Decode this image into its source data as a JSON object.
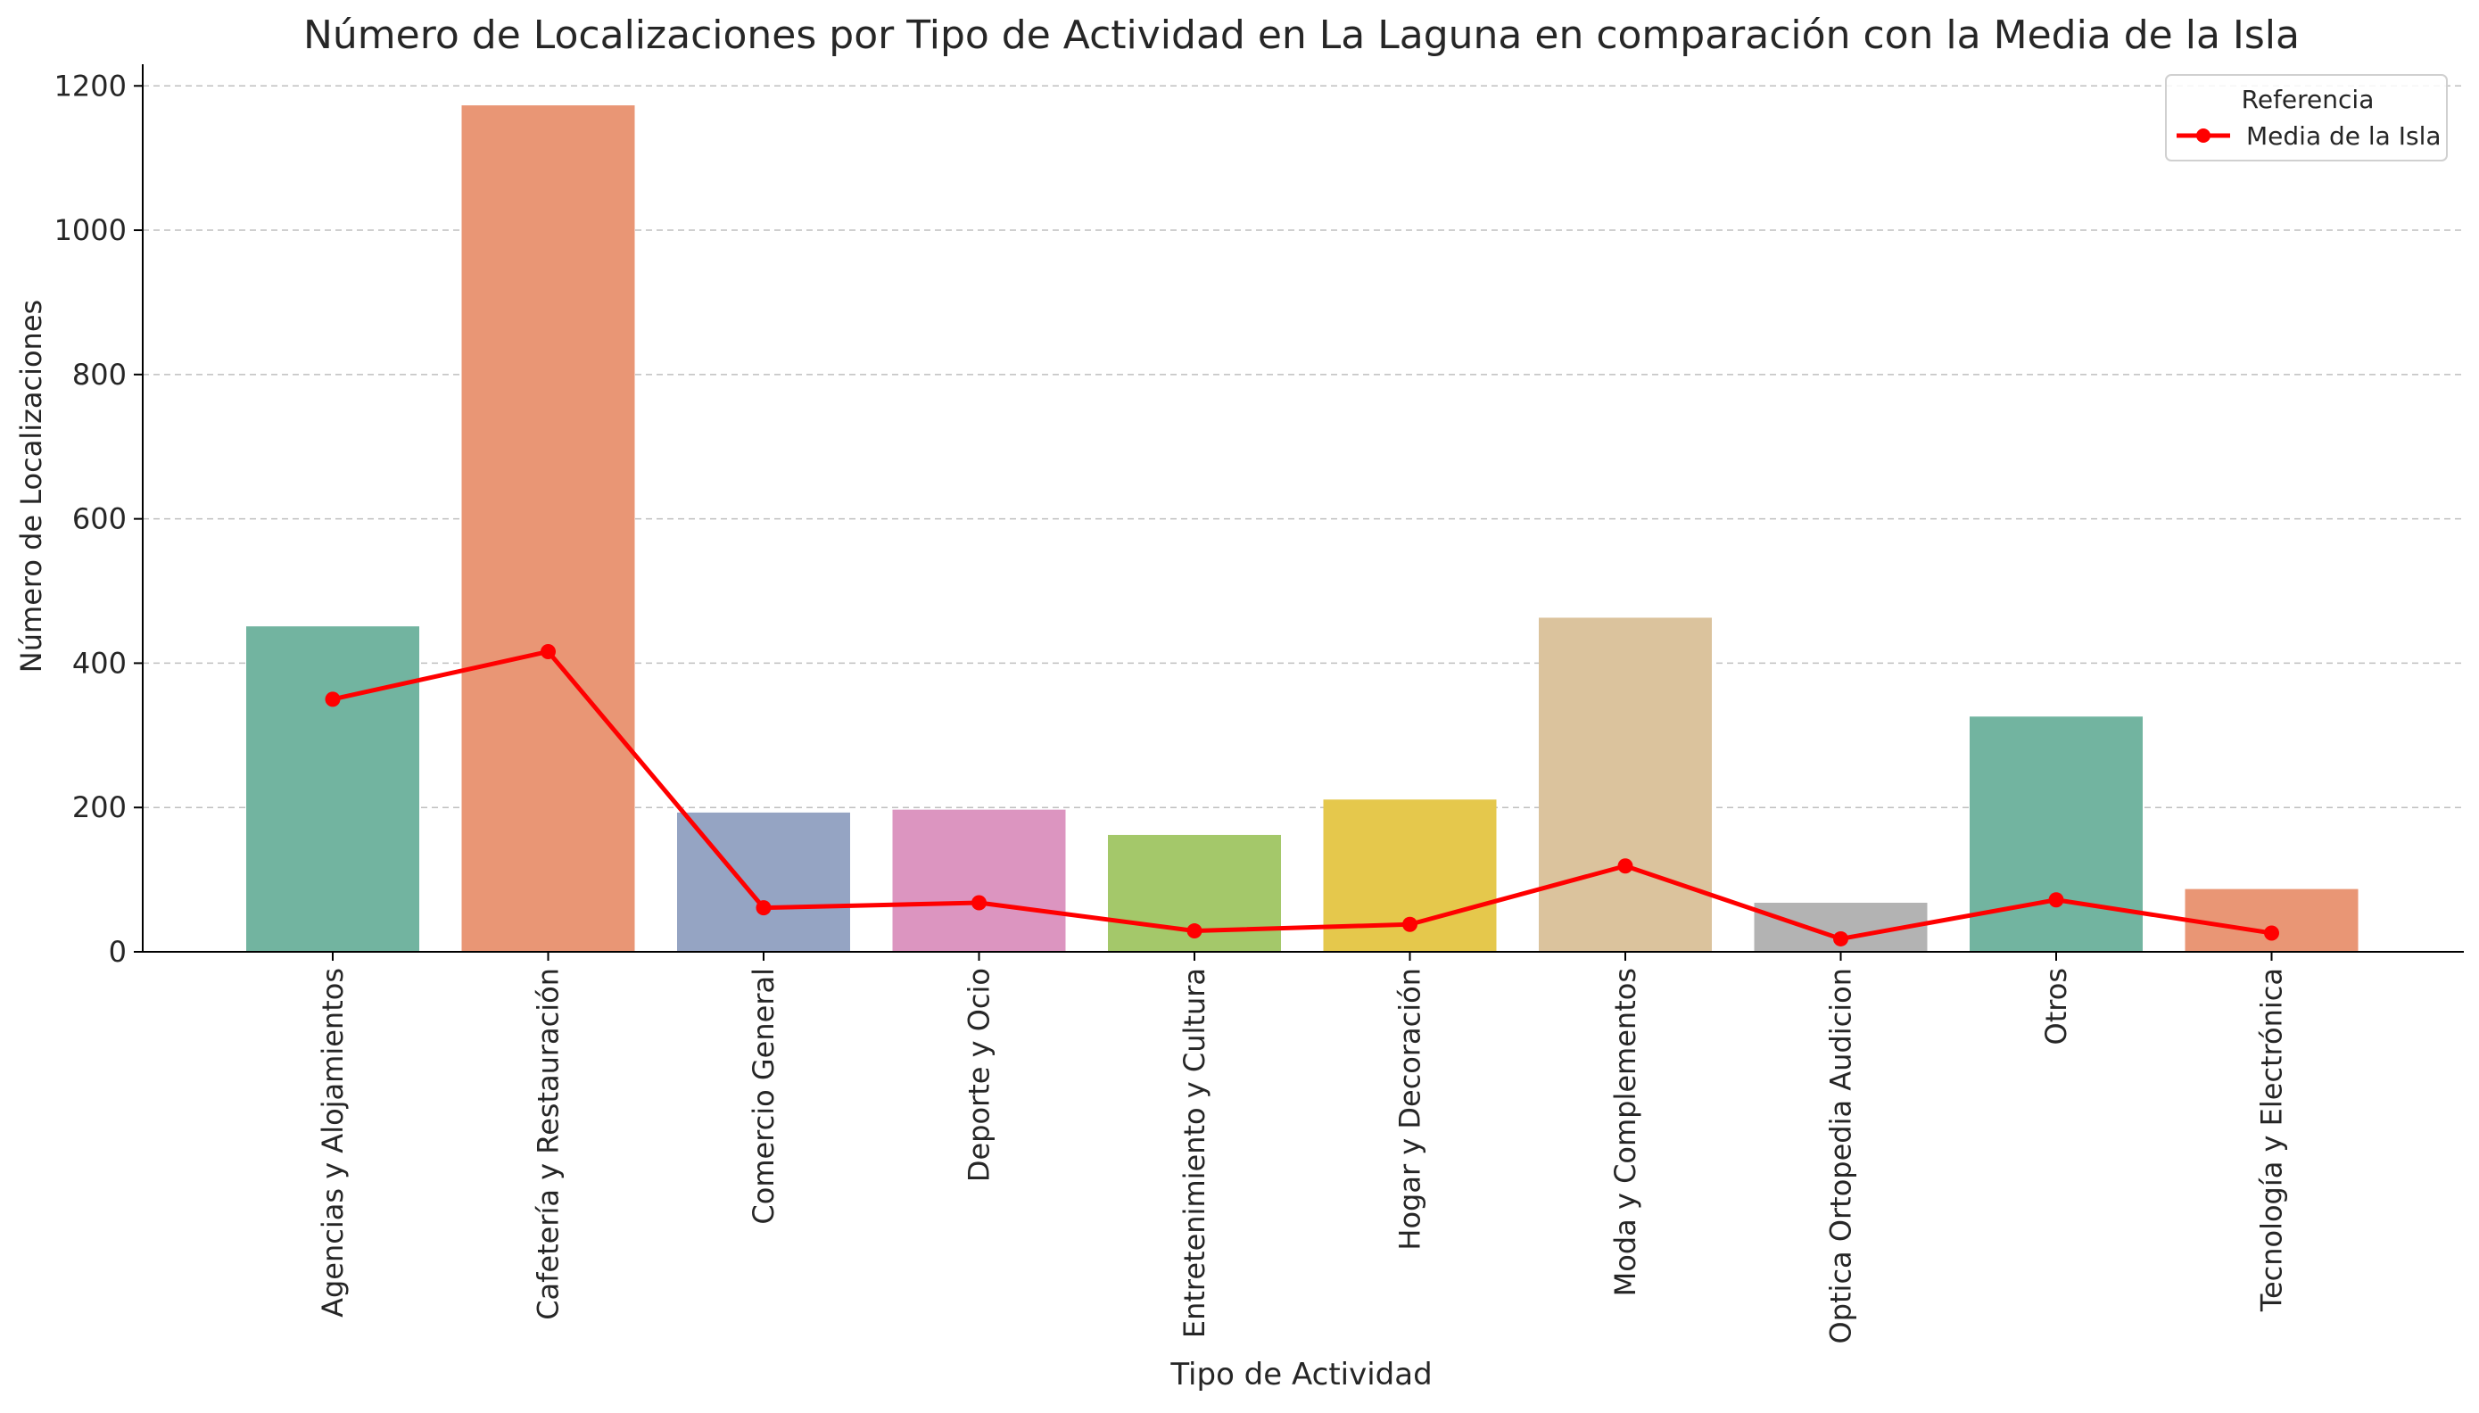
{
  "chart_data": {
    "type": "bar",
    "title": "Número de Localizaciones por Tipo de Actividad en La Laguna en comparación con la Media de la Isla",
    "xlabel": "Tipo de Actividad",
    "ylabel": "Número de Localizaciones",
    "ylim": [
      0,
      1230
    ],
    "yticks": [
      0,
      200,
      400,
      600,
      800,
      1000,
      1200
    ],
    "grid": true,
    "categories": [
      "Agencias y Alojamientos",
      "Cafetería y Restauración",
      "Comercio General",
      "Deporte y Ocio",
      "Entretenimiento y Cultura",
      "Hogar y Decoración",
      "Moda y Complementos",
      "Optica Ortopedia Audicion",
      "Otros",
      "Tecnología y Electrónica"
    ],
    "values": [
      451,
      1173,
      193,
      197,
      162,
      211,
      463,
      68,
      326,
      87
    ],
    "bar_colors": [
      "#72b4a0",
      "#e99675",
      "#95a4c3",
      "#dc95c0",
      "#a4c86a",
      "#e5c84c",
      "#dbc39d",
      "#b3b3b3",
      "#72b4a0",
      "#e99675"
    ],
    "line_series": {
      "name": "Media de la Isla",
      "color": "#ff0000",
      "values": [
        350,
        416,
        61,
        68,
        29,
        38,
        119,
        18,
        72,
        26
      ]
    },
    "legend": {
      "title": "Referencia",
      "position": "top-right"
    }
  }
}
